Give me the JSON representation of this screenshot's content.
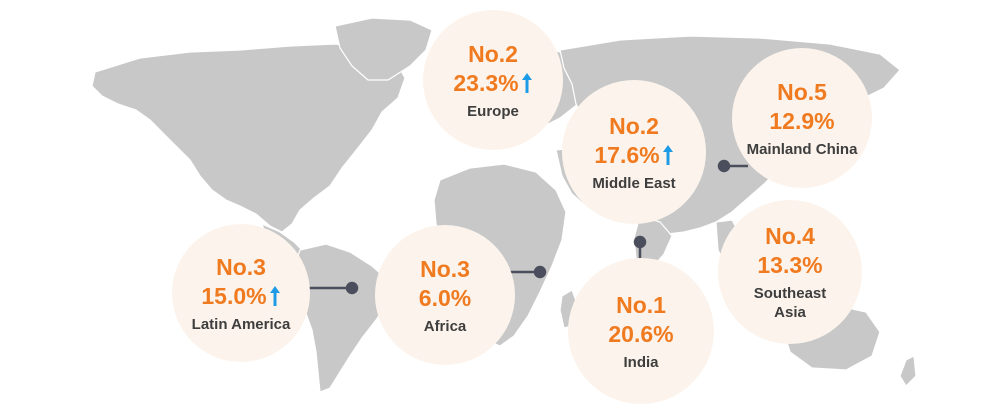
{
  "colors": {
    "land": "#c8c8c8",
    "bubble_fill": "#fcf4ec",
    "rank_text": "#f07a1f",
    "region_text": "#3e3e3e",
    "arrow": "#1e9be6",
    "connector": "#4b4e5c"
  },
  "regions": [
    {
      "id": "europe",
      "rank": "No.2",
      "percent": "23.3%",
      "name": "Europe",
      "trend": "up"
    },
    {
      "id": "middle-east",
      "rank": "No.2",
      "percent": "17.6%",
      "name": "Middle East",
      "trend": "up"
    },
    {
      "id": "mainland-china",
      "rank": "No.5",
      "percent": "12.9%",
      "name": "Mainland China",
      "trend": "none"
    },
    {
      "id": "latin-america",
      "rank": "No.3",
      "percent": "15.0%",
      "name": "Latin America",
      "trend": "up"
    },
    {
      "id": "africa",
      "rank": "No.3",
      "percent": "6.0%",
      "name": "Africa",
      "trend": "none"
    },
    {
      "id": "india",
      "rank": "No.1",
      "percent": "20.6%",
      "name": "India",
      "trend": "none"
    },
    {
      "id": "southeast-asia",
      "rank": "No.4",
      "percent": "13.3%",
      "name": "Southeast Asia",
      "trend": "none"
    }
  ]
}
